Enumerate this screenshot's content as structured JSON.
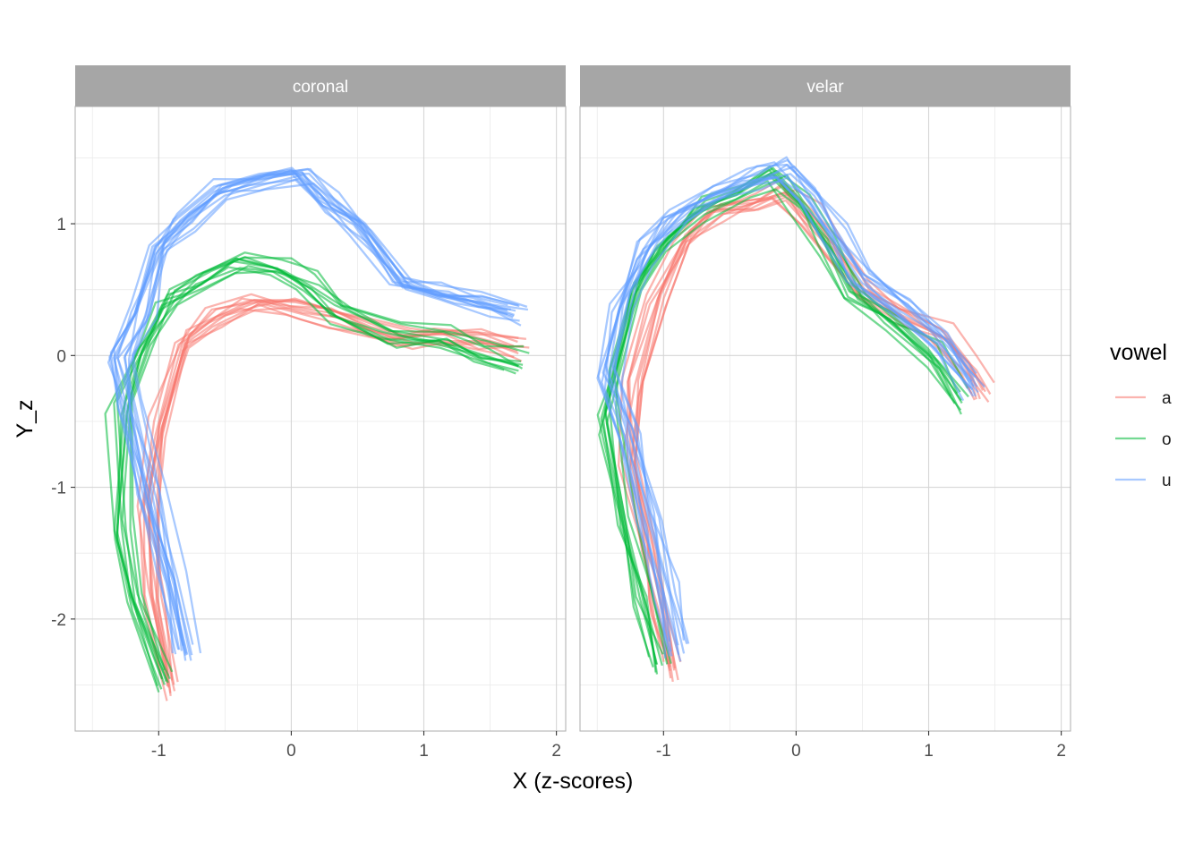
{
  "chart_data": {
    "type": "line",
    "xlabel": "X (z-scores)",
    "ylabel": "Y_z",
    "xlim": [
      -1.63,
      2.07
    ],
    "ylim": [
      -2.85,
      1.89
    ],
    "x_ticks": [
      -1,
      0,
      1,
      2
    ],
    "x_tick_labels": [
      "-1",
      "0",
      "1",
      "2"
    ],
    "y_ticks": [
      -2,
      -1,
      0,
      1
    ],
    "y_tick_labels": [
      "-2",
      "-1",
      "0",
      "1"
    ],
    "grid": true,
    "legend": {
      "title": "vowel",
      "position": "right",
      "entries": [
        {
          "label": "a",
          "color": "#F8766D"
        },
        {
          "label": "o",
          "color": "#00BA38"
        },
        {
          "label": "u",
          "color": "#619CFF"
        }
      ]
    },
    "panels": [
      {
        "facet": "coronal",
        "series": [
          {
            "vowel": "a",
            "color": "#F8766D",
            "base": [
              [
                -0.92,
                -2.52
              ],
              [
                -1.05,
                -1.85
              ],
              [
                -1.1,
                -1.15
              ],
              [
                -1.02,
                -0.55
              ],
              [
                -0.82,
                0.1
              ],
              [
                -0.6,
                0.28
              ],
              [
                -0.3,
                0.4
              ],
              [
                0.0,
                0.36
              ],
              [
                0.3,
                0.28
              ],
              [
                0.6,
                0.18
              ],
              [
                0.85,
                0.12
              ],
              [
                1.1,
                0.15
              ],
              [
                1.4,
                0.1
              ],
              [
                1.7,
                0.05
              ]
            ],
            "instances": 11
          },
          {
            "vowel": "o",
            "color": "#00BA38",
            "base": [
              [
                -0.98,
                -2.45
              ],
              [
                -1.18,
                -1.85
              ],
              [
                -1.3,
                -1.3
              ],
              [
                -1.3,
                -0.35
              ],
              [
                -1.15,
                0.05
              ],
              [
                -0.95,
                0.42
              ],
              [
                -0.7,
                0.58
              ],
              [
                -0.4,
                0.72
              ],
              [
                -0.1,
                0.68
              ],
              [
                0.1,
                0.55
              ],
              [
                0.35,
                0.35
              ],
              [
                0.75,
                0.15
              ],
              [
                1.15,
                0.14
              ],
              [
                1.45,
                0.02
              ],
              [
                1.7,
                -0.05
              ]
            ],
            "instances": 10
          },
          {
            "vowel": "u",
            "color": "#619CFF",
            "base": [
              [
                -0.78,
                -2.28
              ],
              [
                -0.9,
                -1.7
              ],
              [
                -1.05,
                -1.05
              ],
              [
                -1.2,
                -0.4
              ],
              [
                -1.28,
                -0.05
              ],
              [
                -1.12,
                0.3
              ],
              [
                -0.98,
                0.78
              ],
              [
                -0.8,
                0.98
              ],
              [
                -0.5,
                1.25
              ],
              [
                -0.2,
                1.32
              ],
              [
                0.1,
                1.35
              ],
              [
                0.3,
                1.15
              ],
              [
                0.55,
                0.95
              ],
              [
                0.85,
                0.52
              ],
              [
                1.15,
                0.45
              ],
              [
                1.45,
                0.38
              ],
              [
                1.72,
                0.3
              ]
            ],
            "instances": 14
          }
        ]
      },
      {
        "facet": "velar",
        "series": [
          {
            "vowel": "a",
            "color": "#F8766D",
            "base": [
              [
                -0.95,
                -2.38
              ],
              [
                -1.05,
                -1.9
              ],
              [
                -1.15,
                -1.4
              ],
              [
                -1.25,
                -0.8
              ],
              [
                -1.22,
                -0.2
              ],
              [
                -1.05,
                0.45
              ],
              [
                -0.85,
                0.9
              ],
              [
                -0.6,
                1.1
              ],
              [
                -0.3,
                1.18
              ],
              [
                -0.1,
                1.25
              ],
              [
                0.1,
                1.05
              ],
              [
                0.3,
                0.8
              ],
              [
                0.5,
                0.5
              ],
              [
                0.75,
                0.35
              ],
              [
                1.1,
                0.15
              ],
              [
                1.3,
                -0.1
              ],
              [
                1.4,
                -0.25
              ]
            ],
            "instances": 10
          },
          {
            "vowel": "o",
            "color": "#00BA38",
            "base": [
              [
                -1.02,
                -2.35
              ],
              [
                -1.15,
                -1.85
              ],
              [
                -1.28,
                -1.3
              ],
              [
                -1.4,
                -0.5
              ],
              [
                -1.38,
                -0.15
              ],
              [
                -1.2,
                0.5
              ],
              [
                -1.0,
                0.82
              ],
              [
                -0.7,
                1.1
              ],
              [
                -0.4,
                1.25
              ],
              [
                -0.15,
                1.35
              ],
              [
                0.05,
                1.15
              ],
              [
                0.25,
                0.85
              ],
              [
                0.45,
                0.45
              ],
              [
                0.7,
                0.25
              ],
              [
                1.05,
                0.0
              ],
              [
                1.25,
                -0.35
              ]
            ],
            "instances": 10
          },
          {
            "vowel": "u",
            "color": "#619CFF",
            "base": [
              [
                -0.88,
                -2.25
              ],
              [
                -0.98,
                -1.8
              ],
              [
                -1.1,
                -1.25
              ],
              [
                -1.25,
                -0.6
              ],
              [
                -1.4,
                -0.15
              ],
              [
                -1.3,
                0.4
              ],
              [
                -1.15,
                0.78
              ],
              [
                -0.9,
                1.05
              ],
              [
                -0.6,
                1.25
              ],
              [
                -0.3,
                1.35
              ],
              [
                -0.1,
                1.4
              ],
              [
                0.1,
                1.22
              ],
              [
                0.3,
                0.92
              ],
              [
                0.5,
                0.6
              ],
              [
                0.8,
                0.35
              ],
              [
                1.1,
                0.12
              ],
              [
                1.35,
                -0.25
              ]
            ],
            "instances": 12
          }
        ]
      }
    ]
  }
}
